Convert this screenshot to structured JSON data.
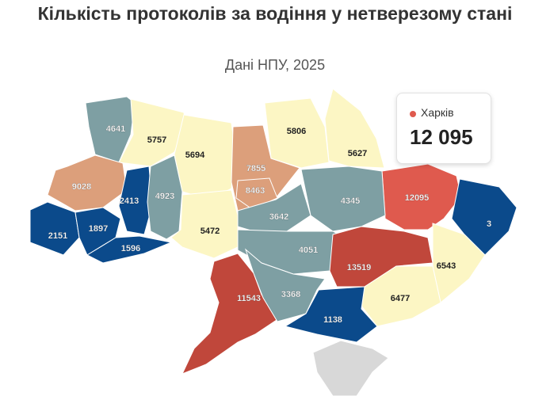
{
  "chart_data": {
    "type": "choropleth",
    "title": "Кількість протоколів за водіння у нетверезому стані",
    "subtitle": "Дані НПУ, 2025",
    "regions": [
      {
        "value": 4641,
        "color": "#7e9fa3"
      },
      {
        "value": 5757,
        "color": "#fcf6c4"
      },
      {
        "value": 5694,
        "color": "#fcf6c4"
      },
      {
        "value": 7855,
        "color": "#dc9f7b"
      },
      {
        "value": 8463,
        "color": "#dc9f7b"
      },
      {
        "value": 5806,
        "color": "#fcf6c4"
      },
      {
        "value": 5627,
        "color": "#fcf6c4"
      },
      {
        "value": 12095,
        "color": "#df5a4e"
      },
      {
        "value": 3,
        "color": "#0b4a8b"
      },
      {
        "value": 9028,
        "color": "#dc9f7b"
      },
      {
        "value": 2413,
        "color": "#0b4a8b"
      },
      {
        "value": 4923,
        "color": "#7e9fa3"
      },
      {
        "value": 5472,
        "color": "#fcf6c4"
      },
      {
        "value": 3642,
        "color": "#7e9fa3"
      },
      {
        "value": 4345,
        "color": "#7e9fa3"
      },
      {
        "value": 2151,
        "color": "#0b4a8b"
      },
      {
        "value": 1897,
        "color": "#0b4a8b"
      },
      {
        "value": 1596,
        "color": "#0b4a8b"
      },
      {
        "value": 4051,
        "color": "#7e9fa3"
      },
      {
        "value": 13519,
        "color": "#c0473b"
      },
      {
        "value": 6543,
        "color": "#fcf6c4"
      },
      {
        "value": 11543,
        "color": "#c0473b"
      },
      {
        "value": 3368,
        "color": "#7e9fa3"
      },
      {
        "value": 6477,
        "color": "#fcf6c4"
      },
      {
        "value": 1138,
        "color": "#0b4a8b"
      }
    ],
    "tooltip": {
      "name": "Харків",
      "value": 12095,
      "value_label": "12 095",
      "color": "#df5a4e"
    }
  }
}
